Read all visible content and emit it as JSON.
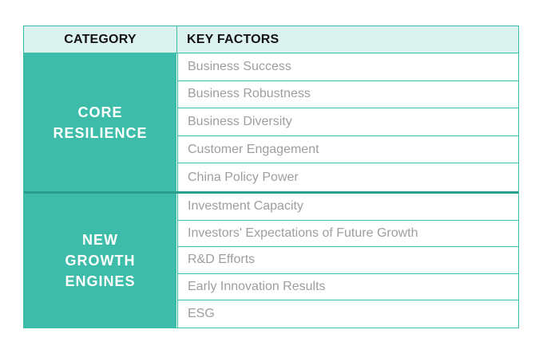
{
  "header": {
    "category": "CATEGORY",
    "key_factors": "KEY FACTORS"
  },
  "groups": [
    {
      "category": "CORE\nRESILIENCE",
      "factors": [
        "Business Success",
        "Business Robustness",
        "Business Diversity",
        "Customer Engagement",
        "China Policy Power"
      ]
    },
    {
      "category": "NEW\nGROWTH\nENGINES",
      "factors": [
        "Investment Capacity",
        "Investors' Expectations of Future Growth",
        "R&D Efforts",
        "Early Innovation Results",
        "ESG"
      ]
    }
  ],
  "colors": {
    "accent": "#3dbda9",
    "header_bg": "#dcf2ee",
    "factor_text": "#9e9e9e"
  }
}
